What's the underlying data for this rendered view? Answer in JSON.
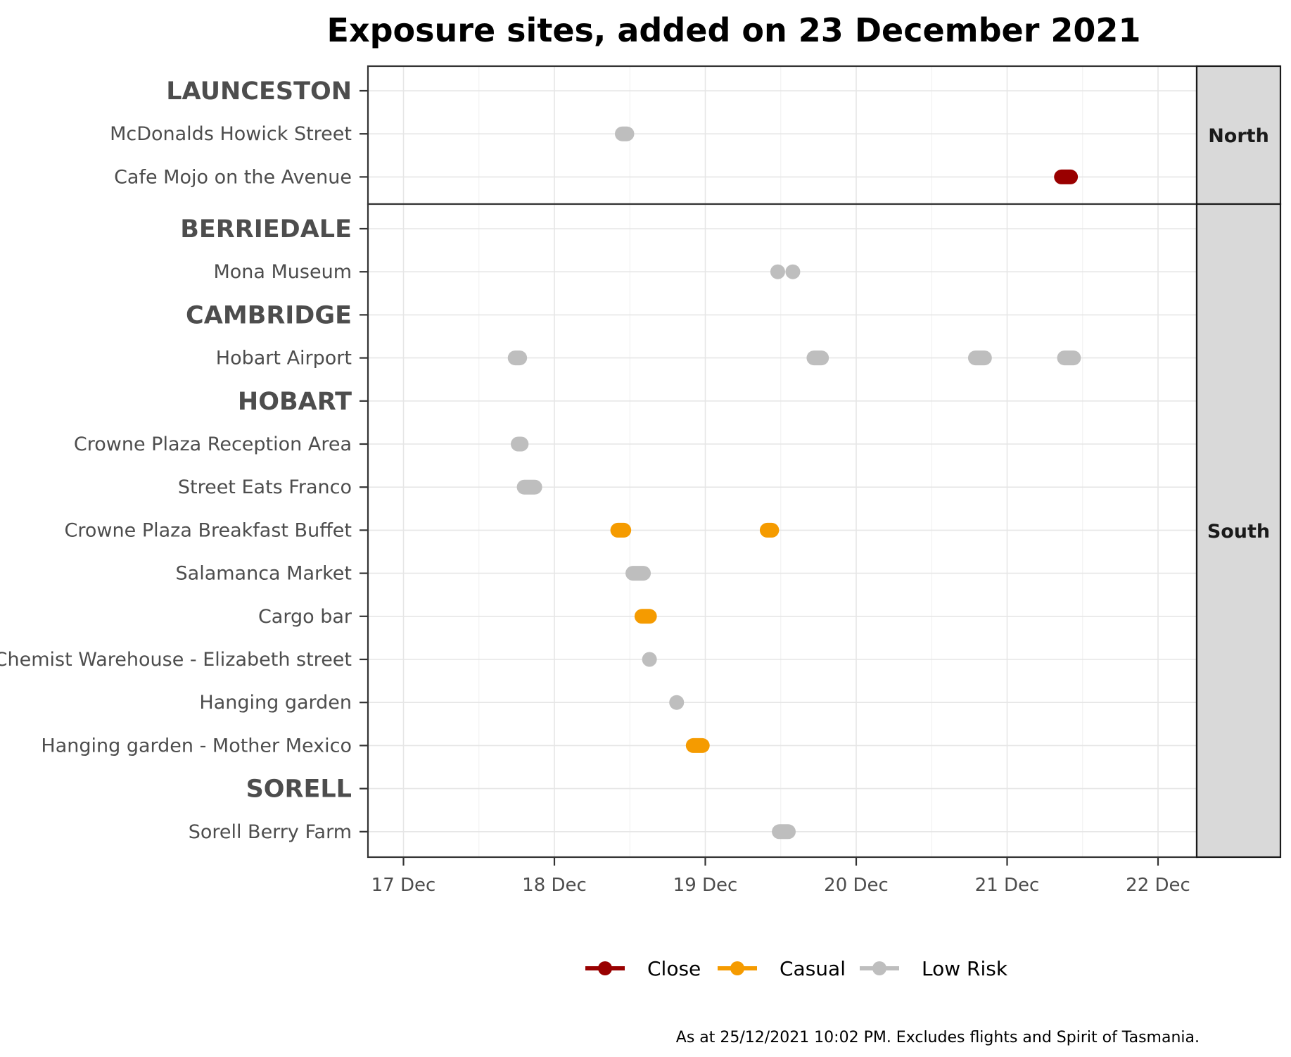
{
  "chart_data": {
    "type": "scatter",
    "title": "Exposure sites, added on 23 December 2021",
    "caption": "As at 25/12/2021 10:02 PM. Excludes flights and Spirit of Tasmania.",
    "x_axis": {
      "ticks": [
        "17 Dec",
        "18 Dec",
        "19 Dec",
        "20 Dec",
        "21 Dec",
        "22 Dec"
      ],
      "range": [
        "16 Dec 18:00",
        "22 Dec 06:00"
      ]
    },
    "grid": true,
    "legend_position": "bottom",
    "risk_levels": [
      {
        "name": "Close",
        "color": "#990000"
      },
      {
        "name": "Casual",
        "color": "#f59b00"
      },
      {
        "name": "Low Risk",
        "color": "#bebebe"
      }
    ],
    "panels": [
      {
        "name": "North",
        "rows": [
          {
            "label": "LAUNCESTON",
            "group": true,
            "exposures": []
          },
          {
            "label": "McDonalds Howick Street",
            "group": false,
            "exposures": [
              {
                "start": 18.45,
                "end": 18.48,
                "risk": "Low Risk"
              }
            ]
          },
          {
            "label": "Cafe Mojo on the Avenue",
            "group": false,
            "exposures": [
              {
                "start": 21.36,
                "end": 21.42,
                "risk": "Close"
              }
            ]
          }
        ]
      },
      {
        "name": "South",
        "rows": [
          {
            "label": "BERRIEDALE",
            "group": true,
            "exposures": []
          },
          {
            "label": "Mona Museum",
            "group": false,
            "exposures": [
              {
                "start": 19.48,
                "end": 19.48,
                "risk": "Low Risk"
              },
              {
                "start": 19.58,
                "end": 19.58,
                "risk": "Low Risk"
              }
            ]
          },
          {
            "label": "CAMBRIDGE",
            "group": true,
            "exposures": []
          },
          {
            "label": "Hobart Airport",
            "group": false,
            "exposures": [
              {
                "start": 17.74,
                "end": 17.77,
                "risk": "Low Risk"
              },
              {
                "start": 19.72,
                "end": 19.77,
                "risk": "Low Risk"
              },
              {
                "start": 20.79,
                "end": 20.85,
                "risk": "Low Risk"
              },
              {
                "start": 21.38,
                "end": 21.44,
                "risk": "Low Risk"
              }
            ]
          },
          {
            "label": "HOBART",
            "group": true,
            "exposures": []
          },
          {
            "label": "Crowne Plaza Reception Area",
            "group": false,
            "exposures": [
              {
                "start": 17.76,
                "end": 17.78,
                "risk": "Low Risk"
              }
            ]
          },
          {
            "label": "Street Eats Franco",
            "group": false,
            "exposures": [
              {
                "start": 17.8,
                "end": 17.87,
                "risk": "Low Risk"
              }
            ]
          },
          {
            "label": "Crowne Plaza Breakfast Buffet",
            "group": false,
            "exposures": [
              {
                "start": 18.42,
                "end": 18.46,
                "risk": "Casual"
              },
              {
                "start": 19.41,
                "end": 19.44,
                "risk": "Casual"
              }
            ]
          },
          {
            "label": "Salamanca Market",
            "group": false,
            "exposures": [
              {
                "start": 18.52,
                "end": 18.59,
                "risk": "Low Risk"
              }
            ]
          },
          {
            "label": "Cargo bar",
            "group": false,
            "exposures": [
              {
                "start": 18.58,
                "end": 18.63,
                "risk": "Casual"
              }
            ]
          },
          {
            "label": "Chemist Warehouse - Elizabeth street",
            "group": false,
            "exposures": [
              {
                "start": 18.63,
                "end": 18.63,
                "risk": "Low Risk"
              }
            ]
          },
          {
            "label": "Hanging garden",
            "group": false,
            "exposures": [
              {
                "start": 18.81,
                "end": 18.81,
                "risk": "Low Risk"
              }
            ]
          },
          {
            "label": "Hanging garden - Mother Mexico",
            "group": false,
            "exposures": [
              {
                "start": 18.92,
                "end": 18.98,
                "risk": "Casual"
              }
            ]
          },
          {
            "label": "SORELL",
            "group": true,
            "exposures": []
          },
          {
            "label": "Sorell Berry Farm",
            "group": false,
            "exposures": [
              {
                "start": 19.49,
                "end": 19.55,
                "risk": "Low Risk"
              }
            ]
          }
        ]
      }
    ]
  }
}
